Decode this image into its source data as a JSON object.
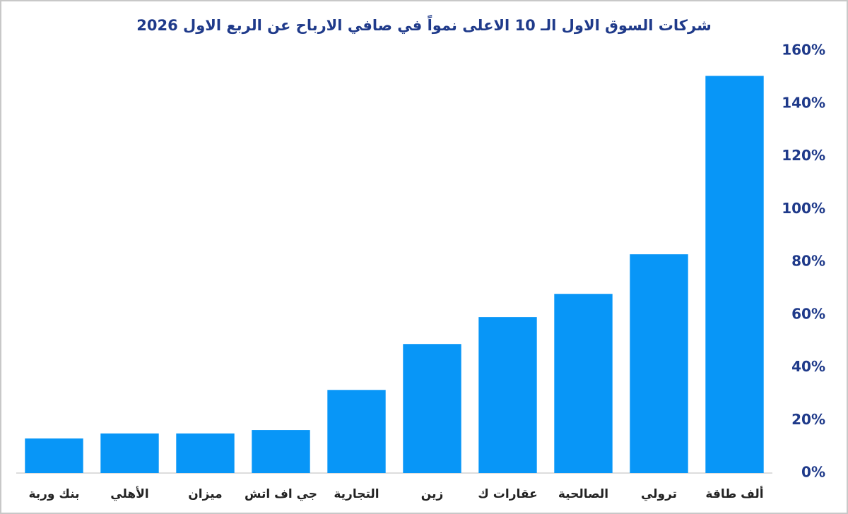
{
  "chart_data": {
    "type": "bar",
    "title": "شركات السوق الاول الـ 10 الاعلى نمواً في صافي الارباح عن الربع الاول 2026",
    "categories": [
      "بنك وربة",
      "الأهلي",
      "ميزان",
      "جي اف اتش",
      "التجارية",
      "زين",
      "عقارات ك",
      "الصالحية",
      "ترولي",
      "ألف طاقة"
    ],
    "values": [
      13.1,
      15,
      15,
      16.3,
      31.5,
      48.9,
      59.1,
      67.9,
      82.9,
      150.5
    ],
    "color": "#0896f7",
    "ylim": [
      0,
      160
    ],
    "yticks": [
      {
        "value": 0,
        "label": "0%"
      },
      {
        "value": 20,
        "label": "20%"
      },
      {
        "value": 40,
        "label": "40%"
      },
      {
        "value": 60,
        "label": "60%"
      },
      {
        "value": 80,
        "label": "80%"
      },
      {
        "value": 100,
        "label": "100%"
      },
      {
        "value": 120,
        "label": "120%"
      },
      {
        "value": 140,
        "label": "140%"
      },
      {
        "value": 160,
        "label": "160%"
      }
    ],
    "grid": false
  }
}
